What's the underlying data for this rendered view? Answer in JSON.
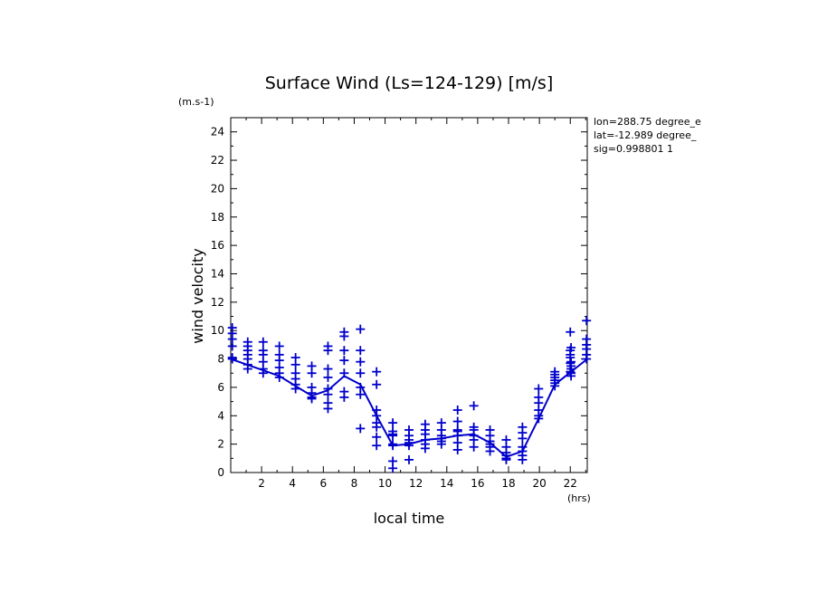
{
  "chart_data": {
    "type": "scatter",
    "title": "Surface Wind  (Ls=124-129) [m/s]",
    "xlabel": "local time",
    "ylabel": "wind velocity",
    "x_unit": "(hrs)",
    "y_unit": "(m.s-1)",
    "xlim": [
      0,
      23.1
    ],
    "ylim": [
      0,
      25
    ],
    "x_ticks": [
      2,
      4,
      6,
      8,
      10,
      12,
      14,
      16,
      18,
      20,
      22
    ],
    "y_ticks": [
      0,
      2,
      4,
      6,
      8,
      10,
      12,
      14,
      16,
      18,
      20,
      22,
      24
    ],
    "grid": false,
    "annotations": [
      "lon=288.75 degree_e",
      "lat=-12.989 degree_",
      "sig=0.998801 1"
    ],
    "series": [
      {
        "type": "line",
        "color": "#0000cc",
        "x": [
          0.0,
          1.05,
          2.1,
          3.15,
          4.2,
          5.25,
          6.3,
          7.35,
          8.4,
          9.45,
          10.5,
          11.55,
          12.6,
          13.65,
          14.7,
          15.75,
          16.8,
          17.85,
          18.9,
          19.95,
          21.0,
          22.05,
          23.1
        ],
        "values": [
          8.0,
          7.6,
          7.2,
          6.8,
          6.1,
          5.4,
          5.8,
          6.8,
          6.2,
          4.0,
          1.9,
          2.0,
          2.3,
          2.4,
          2.6,
          2.7,
          2.1,
          1.1,
          1.5,
          3.8,
          6.2,
          7.1,
          8.0
        ]
      },
      {
        "type": "scatter",
        "marker": "+",
        "color": "#0000cc",
        "points": [
          [
            0.1,
            10.2
          ],
          [
            0.1,
            9.8
          ],
          [
            0.1,
            9.4
          ],
          [
            0.1,
            8.9
          ],
          [
            0.1,
            8.1
          ],
          [
            0.1,
            8.0
          ],
          [
            1.1,
            9.2
          ],
          [
            1.1,
            8.9
          ],
          [
            1.1,
            8.6
          ],
          [
            1.1,
            8.3
          ],
          [
            1.1,
            8.0
          ],
          [
            1.1,
            7.6
          ],
          [
            1.1,
            7.3
          ],
          [
            2.1,
            9.2
          ],
          [
            2.1,
            8.6
          ],
          [
            2.1,
            8.3
          ],
          [
            2.1,
            7.8
          ],
          [
            2.1,
            7.3
          ],
          [
            2.1,
            7.0
          ],
          [
            3.15,
            8.9
          ],
          [
            3.15,
            8.3
          ],
          [
            3.15,
            7.9
          ],
          [
            3.15,
            7.4
          ],
          [
            3.15,
            7.0
          ],
          [
            3.15,
            6.7
          ],
          [
            4.2,
            8.1
          ],
          [
            4.2,
            7.6
          ],
          [
            4.2,
            7.0
          ],
          [
            4.2,
            6.6
          ],
          [
            4.2,
            6.2
          ],
          [
            4.2,
            5.9
          ],
          [
            5.25,
            7.5
          ],
          [
            5.25,
            7.0
          ],
          [
            5.25,
            6.0
          ],
          [
            5.25,
            5.6
          ],
          [
            5.25,
            5.3
          ],
          [
            5.25,
            5.2
          ],
          [
            6.3,
            8.9
          ],
          [
            6.3,
            8.6
          ],
          [
            6.3,
            7.3
          ],
          [
            6.3,
            6.7
          ],
          [
            6.3,
            5.9
          ],
          [
            6.3,
            5.5
          ],
          [
            6.3,
            4.9
          ],
          [
            6.3,
            4.5
          ],
          [
            7.35,
            9.9
          ],
          [
            7.35,
            9.6
          ],
          [
            7.35,
            8.6
          ],
          [
            7.35,
            7.9
          ],
          [
            7.35,
            7.0
          ],
          [
            7.35,
            5.7
          ],
          [
            7.35,
            5.3
          ],
          [
            8.4,
            10.1
          ],
          [
            8.4,
            8.6
          ],
          [
            8.4,
            7.8
          ],
          [
            8.4,
            7.0
          ],
          [
            8.4,
            6.0
          ],
          [
            8.4,
            5.5
          ],
          [
            8.4,
            3.1
          ],
          [
            9.45,
            7.1
          ],
          [
            9.45,
            6.2
          ],
          [
            9.45,
            4.4
          ],
          [
            9.45,
            4.0
          ],
          [
            9.45,
            3.5
          ],
          [
            9.45,
            3.2
          ],
          [
            9.45,
            2.5
          ],
          [
            9.45,
            1.9
          ],
          [
            10.5,
            3.5
          ],
          [
            10.5,
            2.9
          ],
          [
            10.5,
            2.7
          ],
          [
            10.5,
            2.6
          ],
          [
            10.5,
            2.0
          ],
          [
            10.5,
            1.9
          ],
          [
            10.5,
            0.8
          ],
          [
            10.5,
            0.3
          ],
          [
            11.55,
            3.0
          ],
          [
            11.55,
            2.6
          ],
          [
            11.55,
            2.3
          ],
          [
            11.55,
            2.1
          ],
          [
            11.55,
            1.9
          ],
          [
            11.55,
            0.9
          ],
          [
            12.6,
            3.4
          ],
          [
            12.6,
            3.0
          ],
          [
            12.6,
            2.7
          ],
          [
            12.6,
            2.3
          ],
          [
            12.6,
            2.0
          ],
          [
            12.6,
            1.7
          ],
          [
            13.65,
            3.5
          ],
          [
            13.65,
            3.0
          ],
          [
            13.65,
            2.6
          ],
          [
            13.65,
            2.4
          ],
          [
            13.65,
            2.2
          ],
          [
            13.65,
            2.0
          ],
          [
            14.7,
            4.4
          ],
          [
            14.7,
            3.6
          ],
          [
            14.7,
            3.0
          ],
          [
            14.7,
            2.9
          ],
          [
            14.7,
            2.6
          ],
          [
            14.7,
            2.1
          ],
          [
            14.7,
            1.6
          ],
          [
            15.75,
            4.7
          ],
          [
            15.75,
            3.2
          ],
          [
            15.75,
            3.0
          ],
          [
            15.75,
            2.6
          ],
          [
            15.75,
            2.3
          ],
          [
            15.75,
            1.8
          ],
          [
            16.8,
            3.0
          ],
          [
            16.8,
            2.6
          ],
          [
            16.8,
            2.2
          ],
          [
            16.8,
            2.0
          ],
          [
            16.8,
            1.8
          ],
          [
            16.8,
            1.5
          ],
          [
            17.85,
            2.3
          ],
          [
            17.85,
            1.8
          ],
          [
            17.85,
            1.4
          ],
          [
            17.85,
            1.2
          ],
          [
            17.85,
            1.0
          ],
          [
            17.85,
            0.9
          ],
          [
            18.9,
            3.2
          ],
          [
            18.9,
            2.8
          ],
          [
            18.9,
            2.4
          ],
          [
            18.9,
            1.8
          ],
          [
            18.9,
            1.5
          ],
          [
            18.9,
            1.2
          ],
          [
            18.9,
            0.9
          ],
          [
            19.95,
            5.9
          ],
          [
            19.95,
            5.3
          ],
          [
            19.95,
            4.9
          ],
          [
            19.95,
            4.4
          ],
          [
            19.95,
            4.0
          ],
          [
            19.95,
            3.8
          ],
          [
            21.0,
            7.1
          ],
          [
            21.0,
            6.9
          ],
          [
            21.0,
            6.7
          ],
          [
            21.0,
            6.5
          ],
          [
            21.0,
            6.3
          ],
          [
            21.0,
            6.1
          ],
          [
            22.05,
            8.8
          ],
          [
            22.05,
            7.8
          ],
          [
            22.05,
            7.5
          ],
          [
            22.05,
            7.3
          ],
          [
            22.05,
            7.0
          ],
          [
            22.05,
            6.8
          ],
          [
            22.0,
            9.9
          ],
          [
            22.0,
            8.6
          ],
          [
            22.0,
            8.3
          ],
          [
            22.0,
            8.1
          ],
          [
            22.0,
            7.7
          ],
          [
            22.0,
            7.1
          ],
          [
            23.05,
            10.7
          ],
          [
            23.05,
            9.4
          ],
          [
            23.05,
            9.0
          ],
          [
            23.05,
            8.7
          ],
          [
            23.05,
            8.3
          ],
          [
            23.05,
            8.0
          ]
        ]
      }
    ]
  }
}
